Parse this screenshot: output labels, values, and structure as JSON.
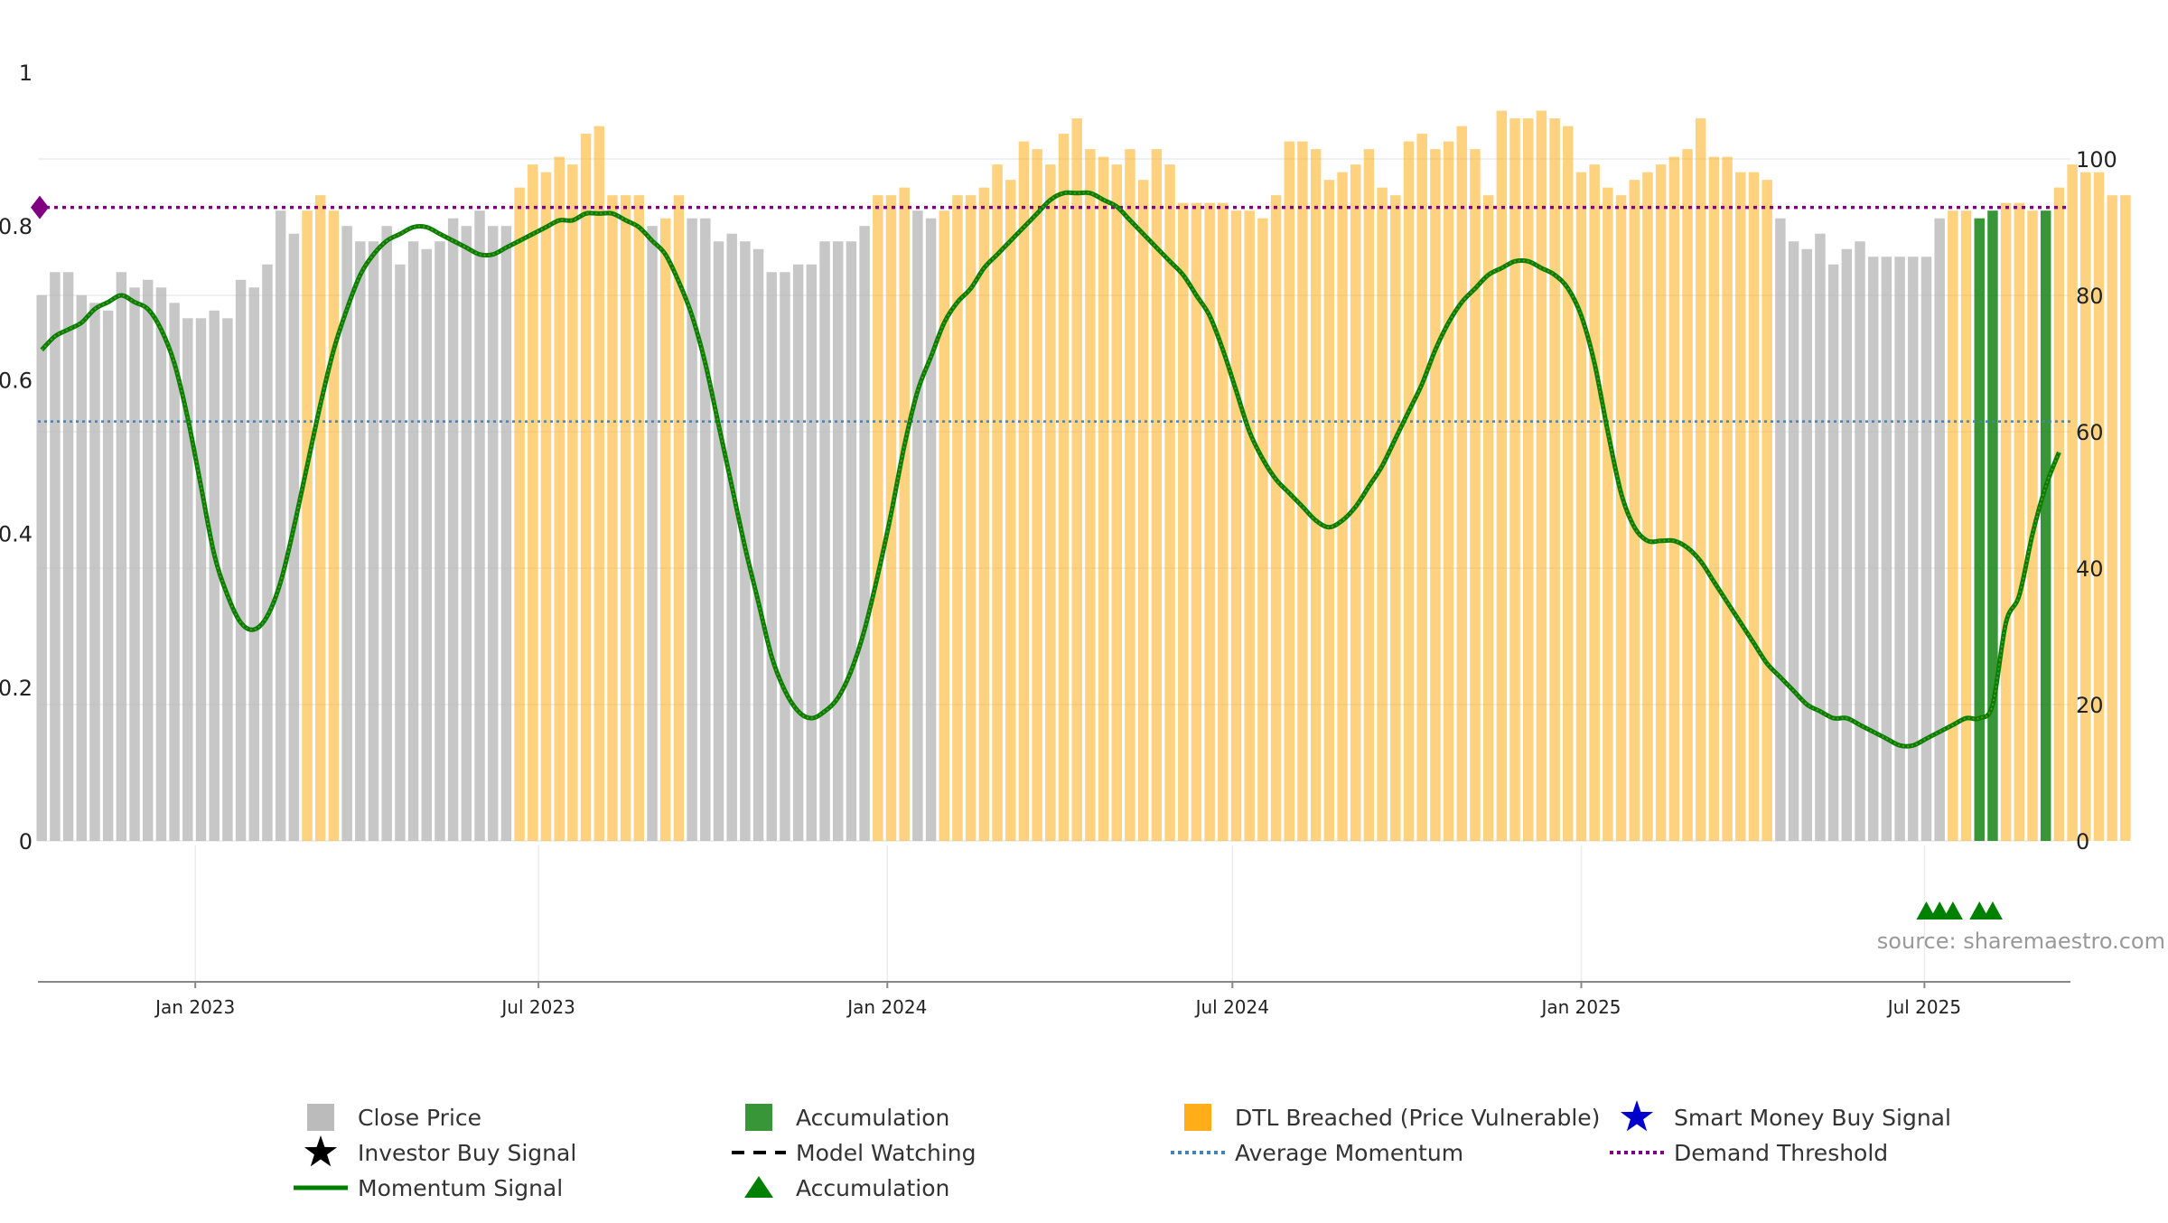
{
  "chart_data": {
    "type": "bar",
    "title": "",
    "xlabel": "",
    "ylabel": "",
    "x_ticks": [
      "Jan 2023",
      "Jul 2023",
      "Jan 2024",
      "Jul 2024",
      "Jan 2025",
      "Jul 2025"
    ],
    "x_tick_dates": [
      "2023-01-01",
      "2023-07-01",
      "2024-01-01",
      "2024-07-01",
      "2025-01-01",
      "2025-07-01"
    ],
    "x_range": [
      "2022-10-10",
      "2025-09-16"
    ],
    "left_axis": {
      "ticks": [
        "0",
        "0.2",
        "0.4",
        "0.6",
        "0.8",
        "1"
      ],
      "range": [
        0,
        1
      ]
    },
    "right_axis": {
      "ticks": [
        "0",
        "20",
        "40",
        "60",
        "80",
        "100"
      ],
      "range": [
        0,
        100
      ]
    },
    "grid": true,
    "legend_placement": "bottom",
    "source": "source: sharemaestro.com",
    "colors": {
      "close_price": "#b4b4b4",
      "dtl_breached": "#ffa500",
      "accumulation": "#228b22",
      "momentum": "#008000",
      "momentum_overlay": "#6b8e23",
      "average_momentum": "#4682b4",
      "demand_threshold": "#800080",
      "smart_money": "#0000cd",
      "investor": "#000000",
      "model_watching": "#000000"
    },
    "series": [
      {
        "name": "Close Price",
        "kind": "bar",
        "week_start": "2022-10-12",
        "interval_days": 7,
        "values": [
          0.71,
          0.74,
          0.74,
          0.71,
          0.7,
          0.69,
          0.74,
          0.72,
          0.73,
          0.72,
          0.7,
          0.68,
          0.68,
          0.69,
          0.68,
          0.73,
          0.72,
          0.75,
          0.82,
          0.79,
          0.82,
          0.84,
          0.82,
          0.8,
          0.78,
          0.78,
          0.8,
          0.75,
          0.78,
          0.77,
          0.78,
          0.81,
          0.8,
          0.82,
          0.8,
          0.8,
          0.85,
          0.88,
          0.87,
          0.89,
          0.88,
          0.92,
          0.93,
          0.84,
          0.84,
          0.84,
          0.8,
          0.81,
          0.84,
          0.81,
          0.81,
          0.78,
          0.79,
          0.78,
          0.77,
          0.74,
          0.74,
          0.75,
          0.75,
          0.78,
          0.78,
          0.78,
          0.8,
          0.84,
          0.84,
          0.85,
          0.82,
          0.81,
          0.82,
          0.84,
          0.84,
          0.85,
          0.88,
          0.86,
          0.91,
          0.9,
          0.88,
          0.92,
          0.94,
          0.9,
          0.89,
          0.88,
          0.9,
          0.86,
          0.9,
          0.88,
          0.83,
          0.83,
          0.83,
          0.83,
          0.82,
          0.82,
          0.81,
          0.84,
          0.91,
          0.91,
          0.9,
          0.86,
          0.87,
          0.88,
          0.9,
          0.85,
          0.84,
          0.91,
          0.92,
          0.9,
          0.91,
          0.93,
          0.9,
          0.84,
          0.95,
          0.94,
          0.94,
          0.95,
          0.94,
          0.93,
          0.87,
          0.88,
          0.85,
          0.84,
          0.86,
          0.87,
          0.88,
          0.89,
          0.9,
          0.94,
          0.89,
          0.89,
          0.87,
          0.87,
          0.86,
          0.81,
          0.78,
          0.77,
          0.79,
          0.75,
          0.77,
          0.78,
          0.76,
          0.76,
          0.76,
          0.76,
          0.76,
          0.81,
          0.82,
          0.82,
          0.81,
          0.82,
          0.83,
          0.83,
          0.82,
          0.82,
          0.85,
          0.88,
          0.87,
          0.87,
          0.84,
          0.84
        ],
        "states": [
          "c",
          "c",
          "c",
          "c",
          "c",
          "c",
          "c",
          "c",
          "c",
          "c",
          "c",
          "c",
          "c",
          "c",
          "c",
          "c",
          "c",
          "c",
          "c",
          "c",
          "d",
          "d",
          "d",
          "c",
          "c",
          "c",
          "c",
          "c",
          "c",
          "c",
          "c",
          "c",
          "c",
          "c",
          "c",
          "c",
          "d",
          "d",
          "d",
          "d",
          "d",
          "d",
          "d",
          "d",
          "d",
          "d",
          "c",
          "d",
          "d",
          "c",
          "c",
          "c",
          "c",
          "c",
          "c",
          "c",
          "c",
          "c",
          "c",
          "c",
          "c",
          "c",
          "c",
          "d",
          "d",
          "d",
          "c",
          "c",
          "d",
          "d",
          "d",
          "d",
          "d",
          "d",
          "d",
          "d",
          "d",
          "d",
          "d",
          "d",
          "d",
          "d",
          "d",
          "d",
          "d",
          "d",
          "d",
          "d",
          "d",
          "d",
          "d",
          "d",
          "d",
          "d",
          "d",
          "d",
          "d",
          "d",
          "d",
          "d",
          "d",
          "d",
          "d",
          "d",
          "d",
          "d",
          "d",
          "d",
          "d",
          "d",
          "d",
          "d",
          "d",
          "d",
          "d",
          "d",
          "d",
          "d",
          "d",
          "d",
          "d",
          "d",
          "d",
          "d",
          "d",
          "d",
          "d",
          "d",
          "d",
          "d",
          "d",
          "c",
          "c",
          "c",
          "c",
          "c",
          "c",
          "c",
          "c",
          "c",
          "c",
          "c",
          "c",
          "c",
          "d",
          "d",
          "a",
          "a",
          "d",
          "d",
          "d",
          "a",
          "d",
          "d",
          "d",
          "d",
          "d",
          "d"
        ]
      },
      {
        "name": "Momentum Signal",
        "kind": "line",
        "values_right_axis": [
          72,
          74,
          75,
          76,
          78,
          79,
          80,
          79,
          78,
          75,
          70,
          62,
          52,
          42,
          36,
          32,
          31,
          33,
          38,
          46,
          55,
          64,
          72,
          78,
          83,
          86,
          88,
          89,
          90,
          90,
          89,
          88,
          87,
          86,
          86,
          87,
          88,
          89,
          90,
          91,
          91,
          92,
          92,
          92,
          91,
          90,
          88,
          86,
          82,
          77,
          70,
          61,
          52,
          43,
          35,
          27,
          22,
          19,
          18,
          19,
          21,
          25,
          31,
          39,
          48,
          58,
          66,
          71,
          76,
          79,
          81,
          84,
          86,
          88,
          90,
          92,
          94,
          95,
          95,
          95,
          94,
          93,
          91,
          89,
          87,
          85,
          83,
          80,
          77,
          72,
          66,
          60,
          56,
          53,
          51,
          49,
          47,
          46,
          47,
          49,
          52,
          55,
          59,
          63,
          67,
          72,
          76,
          79,
          81,
          83,
          84,
          85,
          85,
          84,
          83,
          81,
          77,
          70,
          60,
          51,
          46,
          44,
          44,
          44,
          43,
          41,
          38,
          35,
          32,
          29,
          26,
          24,
          22,
          20,
          19,
          18,
          18,
          17,
          16,
          15,
          14,
          14,
          15,
          16,
          17,
          18,
          18,
          20,
          32,
          36,
          45,
          52,
          57
        ]
      },
      {
        "name": "Average Momentum",
        "kind": "hline",
        "value_right_axis": 61.5
      },
      {
        "name": "Demand Threshold",
        "kind": "hline",
        "value_right_axis": 92.9
      },
      {
        "name": "Accumulation",
        "kind": "marker",
        "marker": "triangle",
        "dates": [
          "2025-07-02",
          "2025-07-09",
          "2025-07-16",
          "2025-07-30",
          "2025-08-06"
        ]
      }
    ],
    "legend": [
      {
        "label": "Close Price",
        "symbol": "square",
        "color": "#b4b4b4"
      },
      {
        "label": "Accumulation",
        "symbol": "square",
        "color": "#228b22"
      },
      {
        "label": "DTL Breached (Price Vulnerable)",
        "symbol": "square",
        "color": "#ffa500"
      },
      {
        "label": "Smart Money Buy Signal",
        "symbol": "star",
        "color": "#0000cd"
      },
      {
        "label": "Investor Buy Signal",
        "symbol": "star",
        "color": "#000000"
      },
      {
        "label": "Model Watching",
        "symbol": "dash",
        "color": "#000000"
      },
      {
        "label": "Average Momentum",
        "symbol": "dot",
        "color": "#4682b4"
      },
      {
        "label": "Demand Threshold",
        "symbol": "dot",
        "color": "#800080"
      },
      {
        "label": "Momentum Signal",
        "symbol": "line",
        "color": "#008000"
      },
      {
        "label": "Accumulation",
        "symbol": "triangle",
        "color": "#008000"
      }
    ]
  }
}
